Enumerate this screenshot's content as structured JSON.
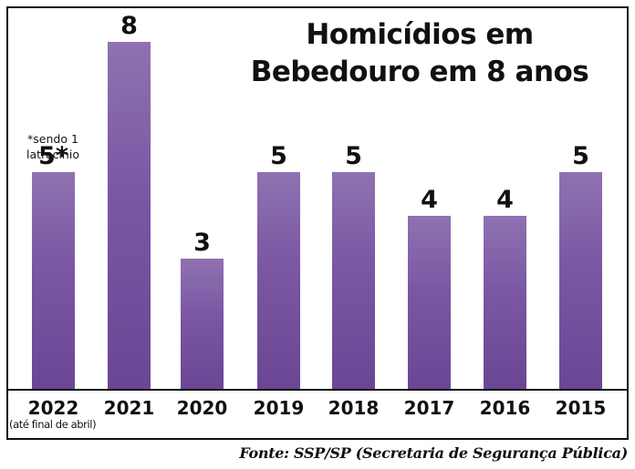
{
  "chart_data": {
    "type": "bar",
    "title": "Homicídios em Bebedouro em 8 anos",
    "title_lines": [
      "Homicídios em",
      "Bebedouro em 8 anos"
    ],
    "categories": [
      "2022",
      "2021",
      "2020",
      "2019",
      "2018",
      "2017",
      "2016",
      "2015"
    ],
    "values": [
      5,
      8,
      3,
      5,
      5,
      4,
      4,
      5
    ],
    "value_labels": [
      "5*",
      "8",
      "3",
      "5",
      "5",
      "4",
      "4",
      "5"
    ],
    "annotations": [
      {
        "category": "2022",
        "text": "*sendo 1 latrocínio",
        "lines": [
          "*sendo 1",
          "latrocínio"
        ]
      },
      {
        "category": "2022",
        "text": "(até final de abril)"
      }
    ],
    "xlabel": "",
    "ylabel": "",
    "ylim": [
      0,
      9
    ],
    "grid": false,
    "legend": null,
    "bar_color": "#7a56a3",
    "source": "Fonte: SSP/SP (Secretaria de Segurança Pública)"
  }
}
